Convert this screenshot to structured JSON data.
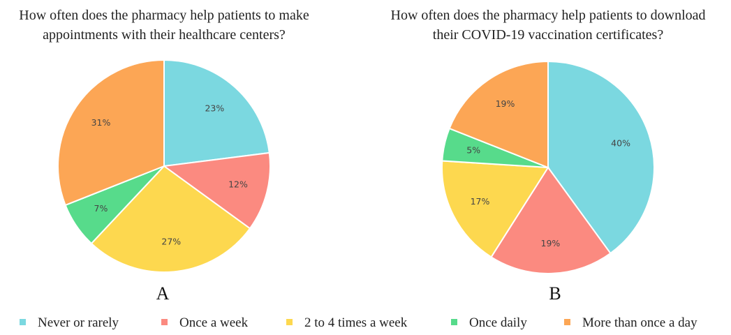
{
  "chart_data": [
    {
      "type": "pie",
      "title": "How often does the pharmacy help patients to make appointments with their healthcare centers?",
      "panel": "A",
      "categories": [
        "Never or rarely",
        "Once a week",
        "2 to 4 times a week",
        "Once daily",
        "More than once a day"
      ],
      "values": [
        23,
        12,
        27,
        7,
        31
      ],
      "value_labels": [
        "23%",
        "12%",
        "27%",
        "7%",
        "31%"
      ],
      "colors": [
        "#7bd8e0",
        "#fb8a80",
        "#fdd84f",
        "#57db8b",
        "#fca655"
      ]
    },
    {
      "type": "pie",
      "title": "How often does the pharmacy help patients to download their COVID-19 vaccination certificates?",
      "panel": "B",
      "categories": [
        "Never or rarely",
        "Once a week",
        "2 to 4 times a week",
        "Once daily",
        "More than once a day"
      ],
      "values": [
        40,
        19,
        17,
        5,
        19
      ],
      "value_labels": [
        "40%",
        "19%",
        "17%",
        "5%",
        "19%"
      ],
      "colors": [
        "#7bd8e0",
        "#fb8a80",
        "#fdd84f",
        "#57db8b",
        "#fca655"
      ]
    }
  ]
}
